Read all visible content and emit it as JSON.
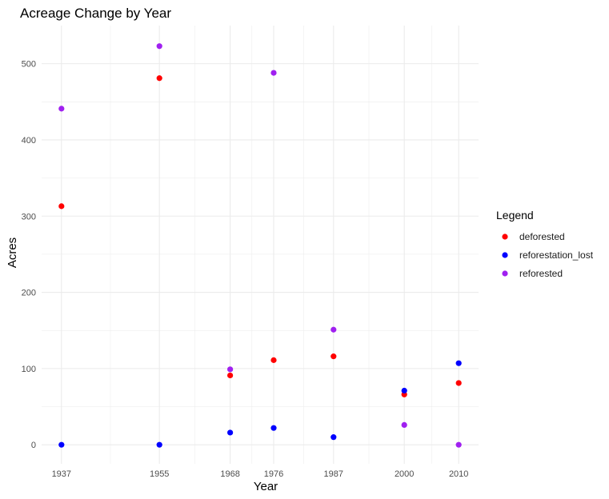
{
  "chart_data": {
    "type": "scatter",
    "title": "Acreage Change by Year",
    "xlabel": "Year",
    "ylabel": "Acres",
    "x": [
      1937,
      1955,
      1968,
      1976,
      1987,
      2000,
      2010
    ],
    "x_ticks": [
      "1937",
      "1955",
      "1968",
      "1976",
      "1987",
      "2000",
      "2010"
    ],
    "y_ticks": [
      "0",
      "100",
      "200",
      "300",
      "400",
      "500"
    ],
    "ylim": [
      -25,
      550
    ],
    "grid": true,
    "legend_position": "right",
    "legend_title": "Legend",
    "series": [
      {
        "name": "deforested",
        "color": "#ff0000",
        "values": [
          313,
          481,
          91,
          111,
          116,
          66,
          81
        ]
      },
      {
        "name": "reforestation_lost",
        "color": "#0000ff",
        "values": [
          0,
          0,
          16,
          22,
          10,
          71,
          107
        ]
      },
      {
        "name": "reforested",
        "color": "#a020f0",
        "values": [
          441,
          523,
          99,
          488,
          151,
          26,
          0
        ]
      }
    ]
  }
}
